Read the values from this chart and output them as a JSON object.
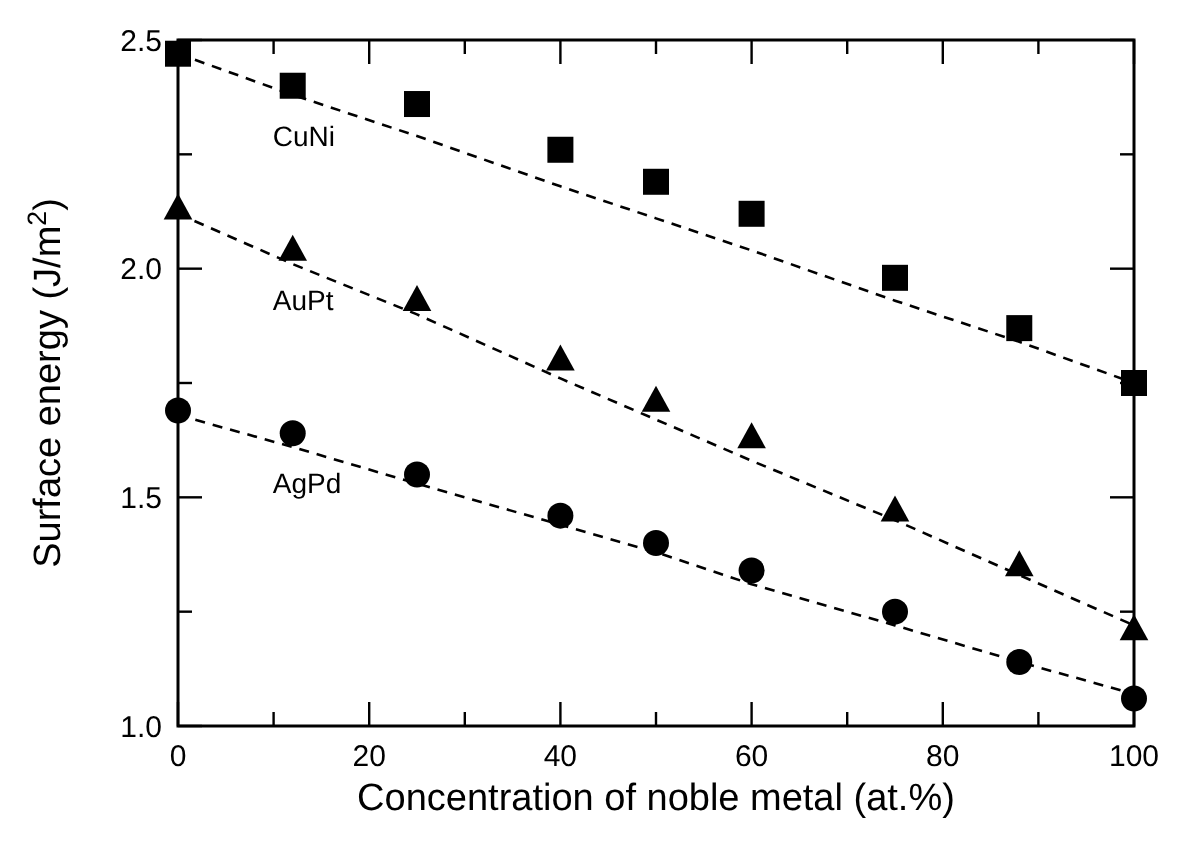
{
  "chart_data": {
    "type": "scatter",
    "xlabel": "Concentration of noble metal (at.%)",
    "ylabel": "Surface energy (J/m$^{2}$)",
    "x": [
      0,
      12,
      25,
      40,
      50,
      60,
      75,
      88,
      100
    ],
    "xlim": [
      0,
      100
    ],
    "xticks": [
      0,
      {
        "value": 10,
        "label": null
      },
      20,
      {
        "value": 30,
        "label": null
      },
      40,
      {
        "value": 50,
        "label": null
      },
      60,
      {
        "value": 70,
        "label": null
      },
      80,
      {
        "value": 90,
        "label": null
      },
      100
    ],
    "ylim": [
      1.0,
      2.5
    ],
    "yticks": [
      {
        "value": 1,
        "label": "1.0"
      },
      {
        "value": 1.25,
        "label": null
      },
      {
        "value": 1.5,
        "label": "1.5"
      },
      {
        "value": 1.75,
        "label": null
      },
      {
        "value": 2,
        "label": "2.0"
      },
      {
        "value": 2.25,
        "label": null
      },
      {
        "value": 2.5,
        "label": "2.5"
      }
    ],
    "grid": false,
    "series": [
      {
        "name": "CuNi",
        "color": "#000000",
        "marker": "square",
        "values": [
          2.47,
          2.4,
          2.36,
          2.26,
          2.19,
          2.12,
          1.98,
          1.87,
          1.75
        ]
      },
      {
        "name": "AuPt",
        "color": "#000000",
        "marker": "triangle",
        "values": [
          2.13,
          2.04,
          1.93,
          1.8,
          1.71,
          1.63,
          1.47,
          1.35,
          1.21
        ]
      },
      {
        "name": "AgPd",
        "color": "#000000",
        "marker": "circle",
        "values": [
          1.69,
          1.64,
          1.55,
          1.46,
          1.4,
          1.34,
          1.25,
          1.14,
          1.06
        ]
      },
      {
        "type": "line",
        "color": "#000000",
        "line_style": "dashed",
        "marker": "none",
        "values": [
          2.47,
          2.38,
          2.29,
          2.18,
          2.11,
          2.04,
          1.93,
          1.84,
          1.75
        ]
      },
      {
        "type": "line",
        "color": "#000000",
        "line_style": "dashed",
        "marker": "none",
        "values": [
          2.12,
          2.01,
          1.9,
          1.76,
          1.67,
          1.58,
          1.45,
          1.33,
          1.22
        ]
      },
      {
        "type": "line",
        "color": "#000000",
        "line_style": "dashed",
        "marker": "none",
        "values": [
          1.68,
          1.61,
          1.53,
          1.44,
          1.38,
          1.31,
          1.22,
          1.14,
          1.07
        ]
      }
    ]
  }
}
